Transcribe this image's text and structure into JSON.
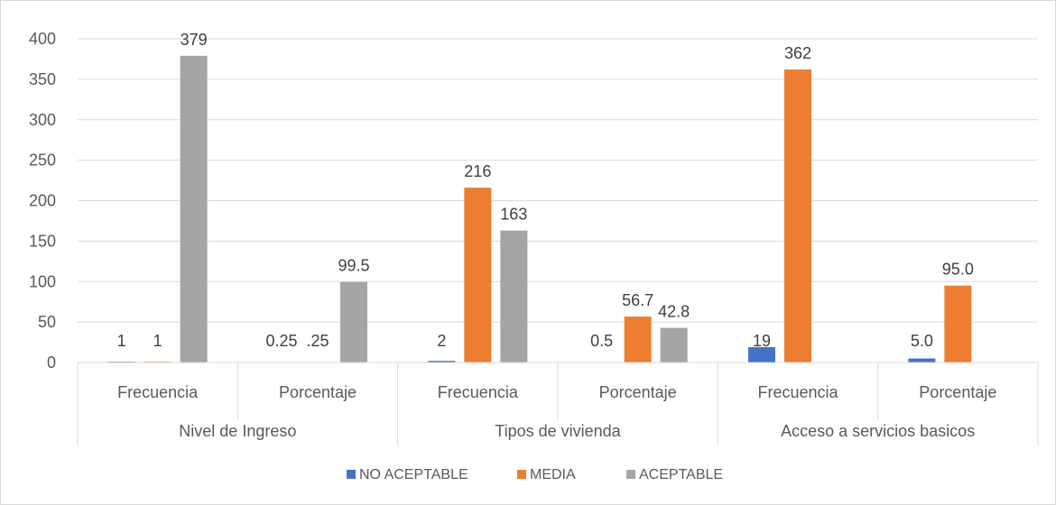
{
  "chart_data": {
    "type": "bar",
    "groups": [
      {
        "label": "Nivel de Ingreso",
        "subcategories": [
          "Frecuencia",
          "Porcentaje"
        ]
      },
      {
        "label": "Tipos de vivienda",
        "subcategories": [
          "Frecuencia",
          "Porcentaje"
        ]
      },
      {
        "label": "Acceso a servicios basicos",
        "subcategories": [
          "Frecuencia",
          "Porcentaje"
        ]
      }
    ],
    "categories": [
      "Nivel de Ingreso / Frecuencia",
      "Nivel de Ingreso / Porcentaje",
      "Tipos de vivienda / Frecuencia",
      "Tipos de vivienda / Porcentaje",
      "Acceso a servicios basicos / Frecuencia",
      "Acceso a servicios basicos / Porcentaje"
    ],
    "series": [
      {
        "name": "NO ACEPTABLE",
        "color": "#4472c4",
        "values": [
          1,
          0.25,
          2,
          0.5,
          19,
          5.0
        ],
        "labels": [
          "1",
          "0.25",
          "2",
          "0.5",
          "19",
          "5.0"
        ]
      },
      {
        "name": "MEDIA",
        "color": "#ed7d31",
        "values": [
          1,
          0.25,
          216,
          56.7,
          362,
          95.0
        ],
        "labels": [
          "1",
          ".25",
          "216",
          "56.7",
          "362",
          "95.0"
        ]
      },
      {
        "name": "ACEPTABLE",
        "color": "#a5a5a5",
        "values": [
          379,
          99.5,
          163,
          42.8,
          0,
          0
        ],
        "labels": [
          "379",
          "99.5",
          "163",
          "42.8",
          "",
          ""
        ]
      }
    ],
    "ylim": [
      0,
      400
    ],
    "yticks": [
      0,
      50,
      100,
      150,
      200,
      250,
      300,
      350,
      400
    ],
    "title": "",
    "xlabel": "",
    "ylabel": "",
    "grid": true,
    "legend_position": "bottom"
  }
}
